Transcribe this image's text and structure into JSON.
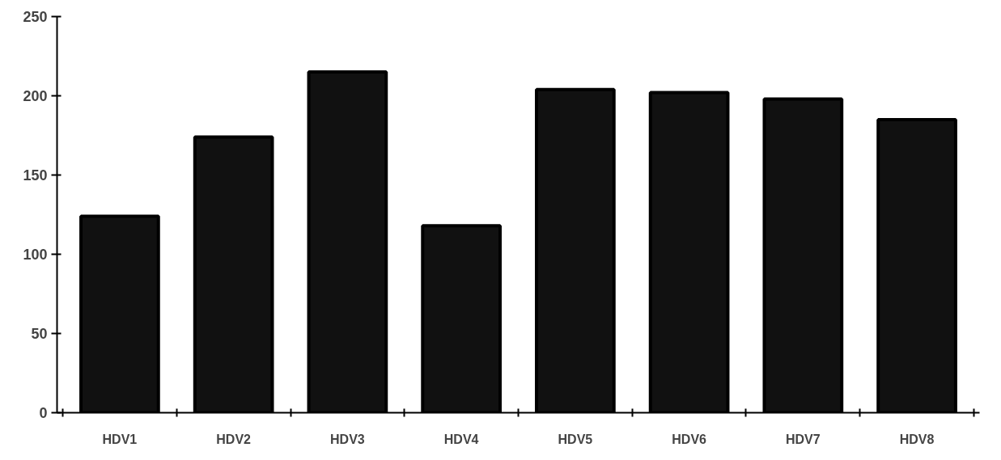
{
  "chart_data": {
    "type": "bar",
    "categories": [
      "HDV1",
      "HDV2",
      "HDV3",
      "HDV4",
      "HDV5",
      "HDV6",
      "HDV7",
      "HDV8"
    ],
    "values": [
      124,
      174,
      215,
      118,
      204,
      202,
      198,
      185
    ],
    "color": "#111111",
    "ylim": [
      0,
      250
    ],
    "yticks": [
      0,
      50,
      100,
      150,
      200,
      250
    ],
    "grid": false
  }
}
